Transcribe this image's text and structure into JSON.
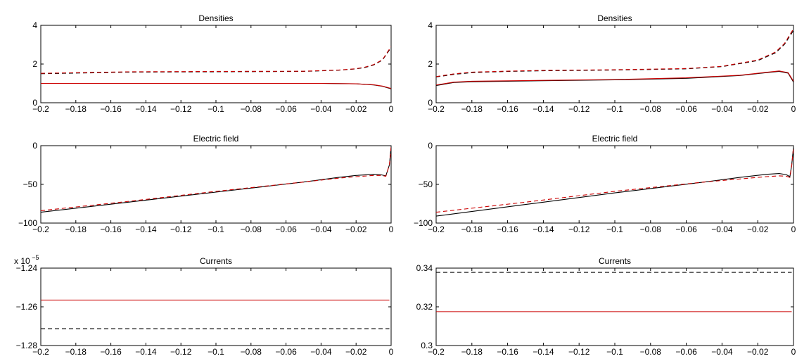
{
  "chart_data": [
    {
      "type": "line",
      "title": "Densities",
      "xlim": [
        -0.2,
        0
      ],
      "ylim": [
        0,
        4
      ],
      "xticks": [
        "−0.2",
        "−0.18",
        "−0.16",
        "−0.14",
        "−0.12",
        "−0.1",
        "−0.08",
        "−0.06",
        "−0.04",
        "−0.02",
        "0"
      ],
      "yticks": [
        "0",
        "2",
        "4"
      ],
      "yscale_label": "",
      "series": [
        {
          "style": "solid",
          "color": "#000000",
          "x": [
            -0.2,
            -0.1,
            -0.04,
            -0.02,
            -0.01,
            -0.005,
            0
          ],
          "y": [
            1.0,
            1.0,
            1.0,
            0.98,
            0.92,
            0.85,
            0.72
          ]
        },
        {
          "style": "solid",
          "color": "#cc0000",
          "x": [
            -0.2,
            -0.1,
            -0.04,
            -0.02,
            -0.01,
            -0.005,
            0
          ],
          "y": [
            1.0,
            1.0,
            1.0,
            0.98,
            0.93,
            0.86,
            0.74
          ]
        },
        {
          "style": "dashed",
          "color": "#000000",
          "x": [
            -0.2,
            -0.15,
            -0.1,
            -0.05,
            -0.03,
            -0.02,
            -0.015,
            -0.01,
            -0.005,
            0
          ],
          "y": [
            1.5,
            1.58,
            1.6,
            1.62,
            1.68,
            1.75,
            1.82,
            1.95,
            2.2,
            2.85
          ]
        },
        {
          "style": "dashed",
          "color": "#cc0000",
          "x": [
            -0.2,
            -0.15,
            -0.1,
            -0.05,
            -0.03,
            -0.02,
            -0.015,
            -0.01,
            -0.005,
            0
          ],
          "y": [
            1.52,
            1.6,
            1.62,
            1.63,
            1.69,
            1.76,
            1.84,
            1.97,
            2.22,
            2.9
          ]
        }
      ]
    },
    {
      "type": "line",
      "title": "Densities",
      "xlim": [
        -0.2,
        0
      ],
      "ylim": [
        0,
        4.5
      ],
      "xticks": [
        "−0.2",
        "−0.18",
        "−0.16",
        "−0.14",
        "−0.12",
        "−0.1",
        "−0.08",
        "−0.06",
        "−0.04",
        "−0.02",
        "0"
      ],
      "yticks": [
        "0",
        "2",
        "4"
      ],
      "yscale_label": "",
      "series": [
        {
          "style": "solid",
          "color": "#000000",
          "x": [
            -0.2,
            -0.19,
            -0.18,
            -0.14,
            -0.1,
            -0.06,
            -0.03,
            -0.015,
            -0.008,
            -0.003,
            0
          ],
          "y": [
            1.0,
            1.18,
            1.22,
            1.28,
            1.33,
            1.42,
            1.58,
            1.75,
            1.82,
            1.72,
            1.2
          ]
        },
        {
          "style": "solid",
          "color": "#cc0000",
          "x": [
            -0.2,
            -0.19,
            -0.18,
            -0.14,
            -0.1,
            -0.06,
            -0.03,
            -0.015,
            -0.008,
            -0.003,
            0
          ],
          "y": [
            1.03,
            1.2,
            1.25,
            1.3,
            1.35,
            1.45,
            1.6,
            1.77,
            1.85,
            1.75,
            1.25
          ]
        },
        {
          "style": "dashed",
          "color": "#000000",
          "x": [
            -0.2,
            -0.19,
            -0.18,
            -0.16,
            -0.14,
            -0.1,
            -0.06,
            -0.04,
            -0.02,
            -0.01,
            -0.005,
            0
          ],
          "y": [
            1.5,
            1.65,
            1.75,
            1.82,
            1.86,
            1.9,
            1.97,
            2.1,
            2.45,
            2.9,
            3.4,
            4.2
          ]
        },
        {
          "style": "dashed",
          "color": "#cc0000",
          "x": [
            -0.2,
            -0.19,
            -0.18,
            -0.16,
            -0.14,
            -0.1,
            -0.06,
            -0.04,
            -0.02,
            -0.01,
            -0.005,
            0
          ],
          "y": [
            1.52,
            1.68,
            1.78,
            1.84,
            1.88,
            1.92,
            1.99,
            2.12,
            2.48,
            2.95,
            3.45,
            4.3
          ]
        }
      ]
    },
    {
      "type": "line",
      "title": "Electric field",
      "xlim": [
        -0.2,
        0
      ],
      "ylim": [
        -100,
        0
      ],
      "xticks": [
        "−0.2",
        "−0.18",
        "−0.16",
        "−0.14",
        "−0.12",
        "−0.1",
        "−0.08",
        "−0.06",
        "−0.04",
        "−0.02",
        "0"
      ],
      "yticks": [
        "−100",
        "−50",
        "0"
      ],
      "yscale_label": "",
      "series": [
        {
          "style": "solid",
          "color": "#000000",
          "x": [
            -0.2,
            -0.15,
            -0.1,
            -0.05,
            -0.03,
            -0.02,
            -0.01,
            -0.006,
            -0.003,
            -0.001,
            0
          ],
          "y": [
            -86,
            -73,
            -60,
            -47,
            -41,
            -38.5,
            -37,
            -37.5,
            -39,
            -25,
            -2
          ]
        },
        {
          "style": "dashed",
          "color": "#cc0000",
          "x": [
            -0.2,
            -0.15,
            -0.1,
            -0.05,
            -0.03,
            -0.02,
            -0.01,
            -0.006,
            -0.003,
            -0.001,
            0
          ],
          "y": [
            -84,
            -72,
            -59,
            -47,
            -42,
            -40,
            -38.5,
            -38.5,
            -39.5,
            -25,
            -2
          ]
        }
      ]
    },
    {
      "type": "line",
      "title": "Electric field",
      "xlim": [
        -0.2,
        0
      ],
      "ylim": [
        -100,
        0
      ],
      "xticks": [
        "−0.2",
        "−0.18",
        "−0.16",
        "−0.14",
        "−0.12",
        "−0.1",
        "−0.08",
        "−0.06",
        "−0.04",
        "−0.02",
        "0"
      ],
      "yticks": [
        "−100",
        "−50",
        "0"
      ],
      "yscale_label": "",
      "series": [
        {
          "style": "solid",
          "color": "#000000",
          "x": [
            -0.2,
            -0.15,
            -0.1,
            -0.05,
            -0.03,
            -0.015,
            -0.008,
            -0.004,
            -0.002,
            -0.001,
            0
          ],
          "y": [
            -91,
            -76,
            -61,
            -47,
            -41,
            -37,
            -36,
            -37.5,
            -40,
            -25,
            -2
          ]
        },
        {
          "style": "dashed",
          "color": "#cc0000",
          "x": [
            -0.2,
            -0.15,
            -0.1,
            -0.05,
            -0.03,
            -0.015,
            -0.008,
            -0.004,
            -0.002,
            -0.001,
            0
          ],
          "y": [
            -86,
            -73,
            -59,
            -47,
            -43,
            -40,
            -39,
            -39.5,
            -41,
            -26,
            -2
          ]
        }
      ]
    },
    {
      "type": "line",
      "title": "Currents",
      "xlim": [
        -0.2,
        0
      ],
      "ylim": [
        -1.28,
        -1.24
      ],
      "xticks": [
        "−0.2",
        "−0.18",
        "−0.16",
        "−0.14",
        "−0.12",
        "−0.1",
        "−0.08",
        "−0.06",
        "−0.04",
        "−0.02",
        "0"
      ],
      "yticks": [
        "−1.28",
        "−1.26",
        "−1.24"
      ],
      "yscale_label": "x 10",
      "yscale_exp": "−5",
      "series": [
        {
          "style": "solid",
          "color": "#cc0000",
          "x": [
            -0.2,
            -0.001
          ],
          "y": [
            -1.2565,
            -1.2565
          ]
        },
        {
          "style": "dashed",
          "color": "#000000",
          "x": [
            -0.2,
            -0.001
          ],
          "y": [
            -1.2713,
            -1.2713
          ]
        }
      ]
    },
    {
      "type": "line",
      "title": "Currents",
      "xlim": [
        -0.2,
        0
      ],
      "ylim": [
        0.3,
        0.34
      ],
      "xticks": [
        "−0.2",
        "−0.18",
        "−0.16",
        "−0.14",
        "−0.12",
        "−0.1",
        "−0.08",
        "−0.06",
        "−0.04",
        "−0.02",
        "0"
      ],
      "yticks": [
        "0.3",
        "0.32",
        "0.34"
      ],
      "yscale_label": "",
      "series": [
        {
          "style": "solid",
          "color": "#cc0000",
          "x": [
            -0.2,
            -0.001
          ],
          "y": [
            0.3175,
            0.3175
          ]
        },
        {
          "style": "dashed",
          "color": "#000000",
          "x": [
            -0.2,
            -0.001
          ],
          "y": [
            0.3378,
            0.3378
          ]
        }
      ]
    }
  ]
}
